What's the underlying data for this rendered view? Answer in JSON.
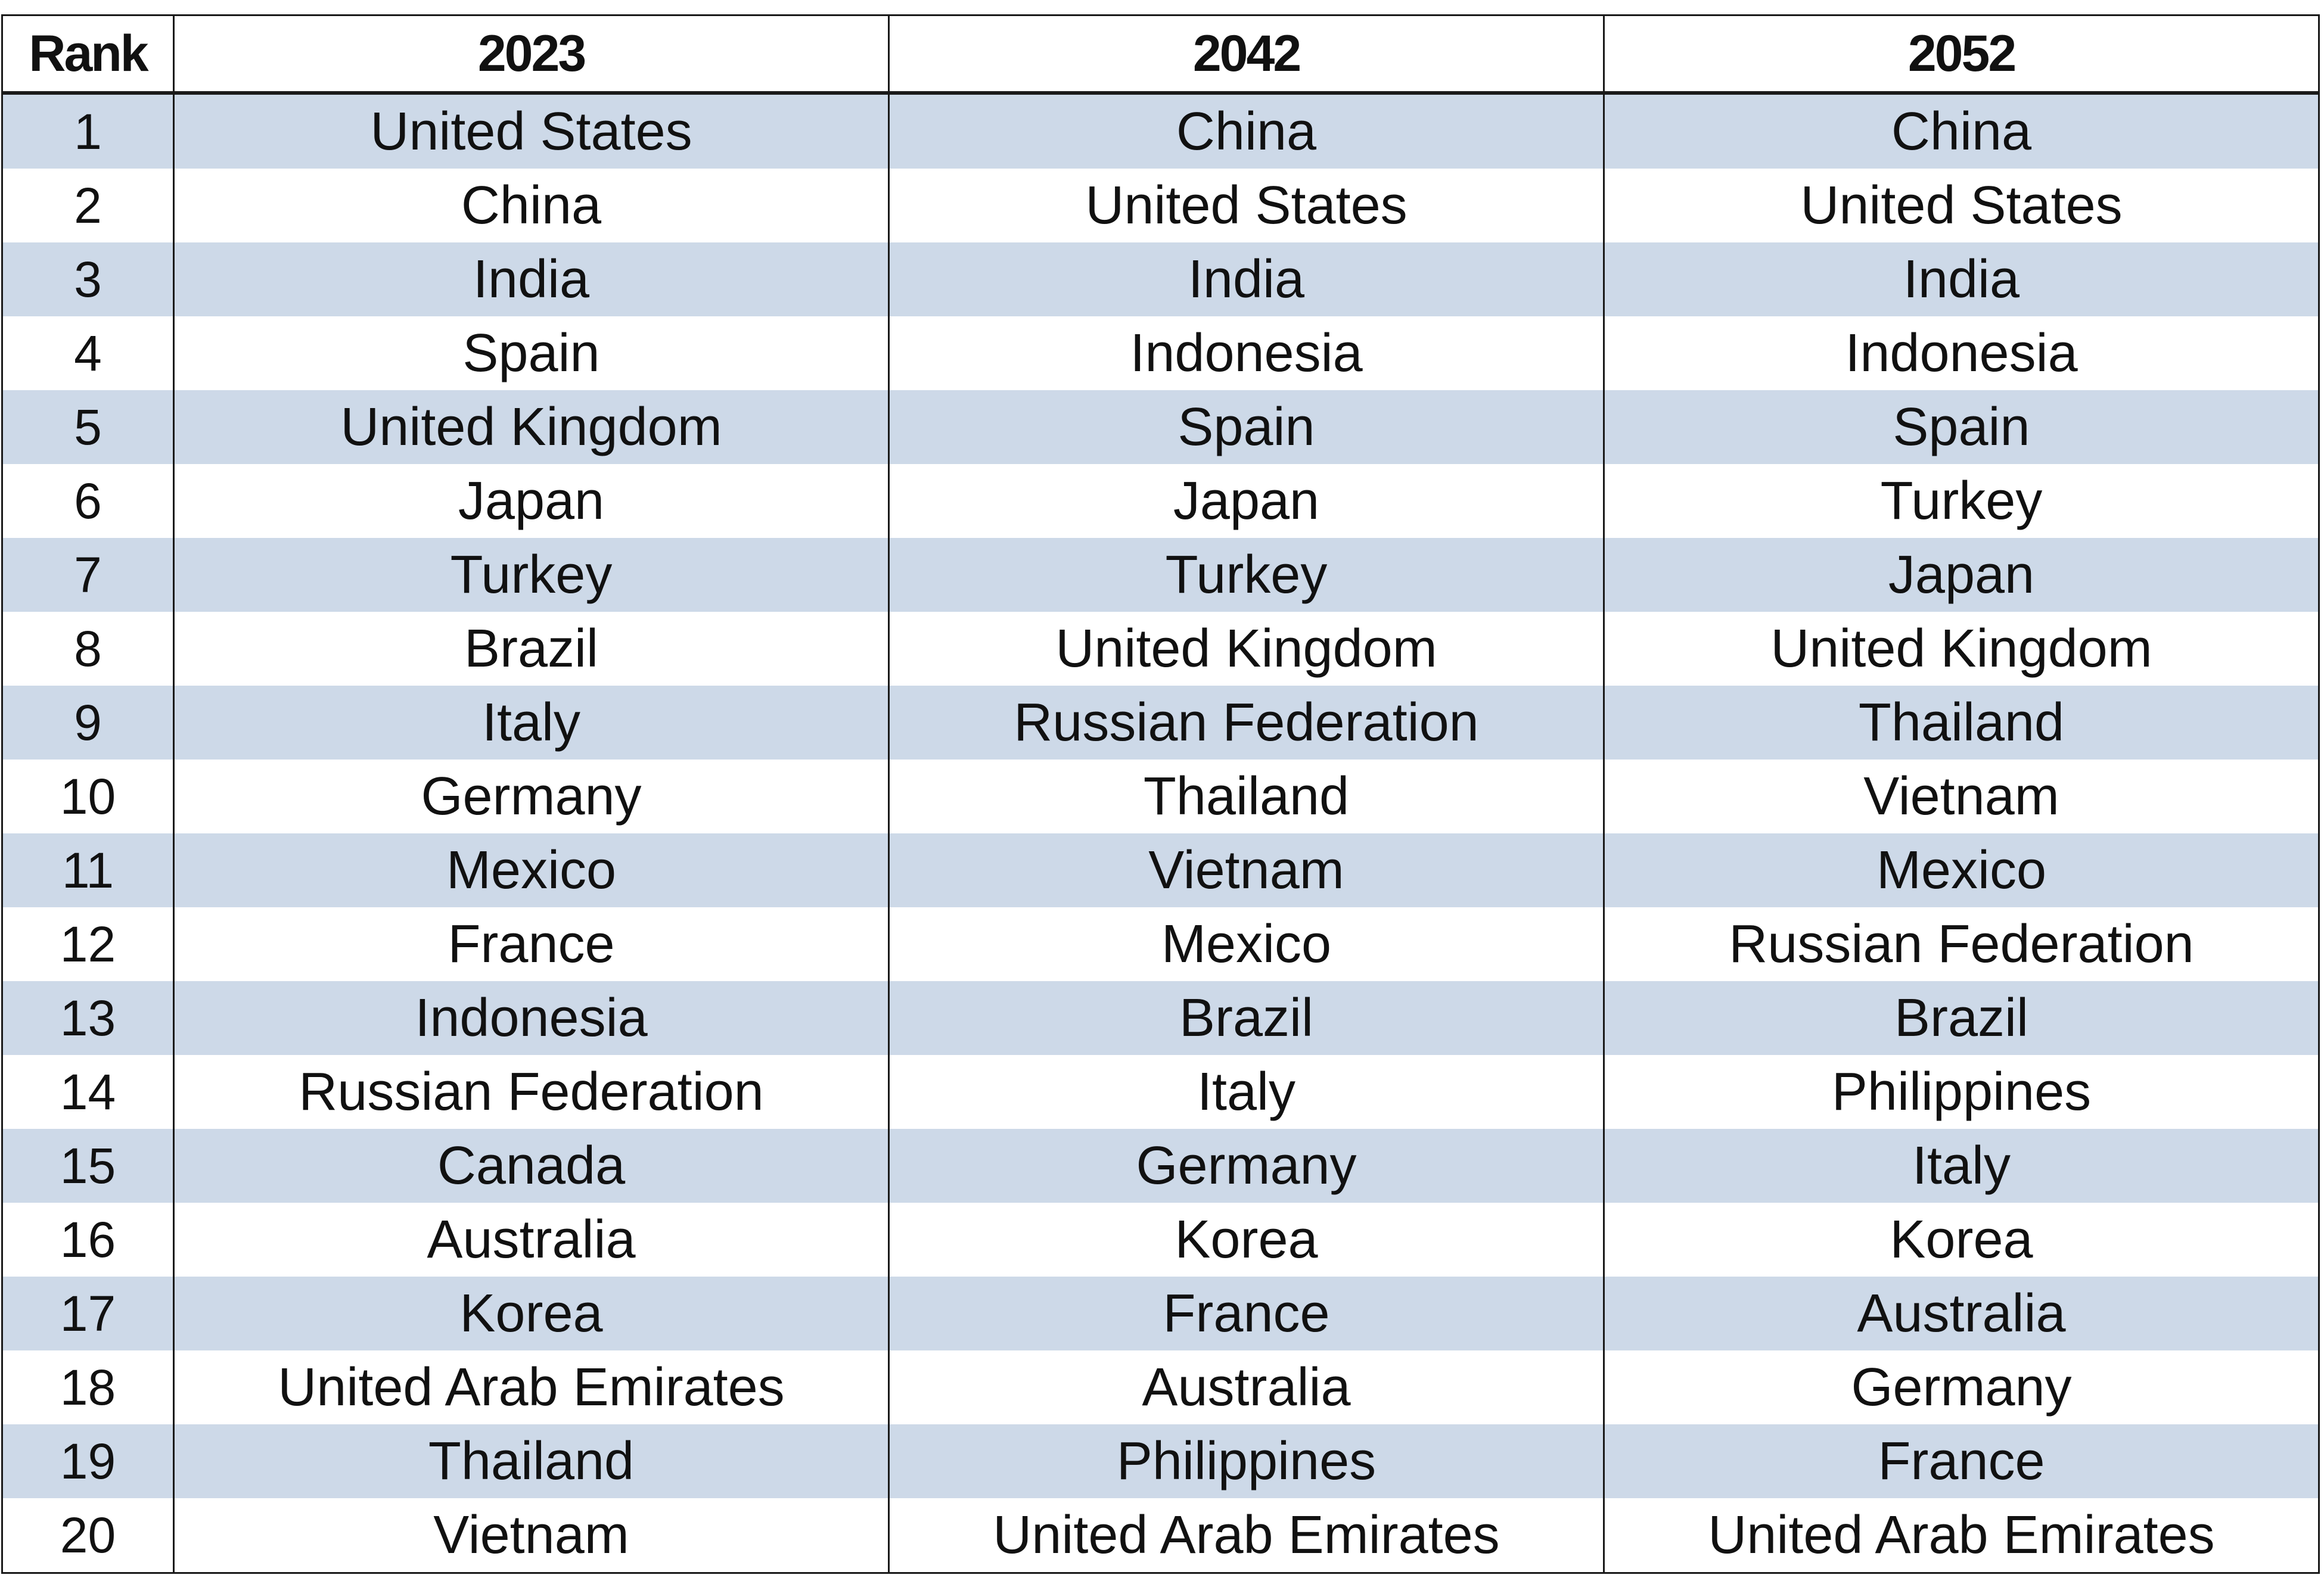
{
  "table": {
    "headers": [
      "Rank",
      "2023",
      "2042",
      "2052"
    ],
    "rows": [
      [
        "1",
        "United States",
        "China",
        "China"
      ],
      [
        "2",
        "China",
        "United States",
        "United States"
      ],
      [
        "3",
        "India",
        "India",
        "India"
      ],
      [
        "4",
        "Spain",
        "Indonesia",
        "Indonesia"
      ],
      [
        "5",
        "United Kingdom",
        "Spain",
        "Spain"
      ],
      [
        "6",
        "Japan",
        "Japan",
        "Turkey"
      ],
      [
        "7",
        "Turkey",
        "Turkey",
        "Japan"
      ],
      [
        "8",
        "Brazil",
        "United Kingdom",
        "United Kingdom"
      ],
      [
        "9",
        "Italy",
        "Russian Federation",
        "Thailand"
      ],
      [
        "10",
        "Germany",
        "Thailand",
        "Vietnam"
      ],
      [
        "11",
        "Mexico",
        "Vietnam",
        "Mexico"
      ],
      [
        "12",
        "France",
        "Mexico",
        "Russian Federation"
      ],
      [
        "13",
        "Indonesia",
        "Brazil",
        "Brazil"
      ],
      [
        "14",
        "Russian Federation",
        "Italy",
        "Philippines"
      ],
      [
        "15",
        "Canada",
        "Germany",
        "Italy"
      ],
      [
        "16",
        "Australia",
        "Korea",
        "Korea"
      ],
      [
        "17",
        "Korea",
        "France",
        "Australia"
      ],
      [
        "18",
        "United Arab Emirates",
        "Australia",
        "Germany"
      ],
      [
        "19",
        "Thailand",
        "Philippines",
        "France"
      ],
      [
        "20",
        "Vietnam",
        "United Arab Emirates",
        "United Arab Emirates"
      ]
    ]
  },
  "colors": {
    "shaded_row": "#cdd9e8",
    "plain_row": "#ffffff",
    "border": "#1a1a1a",
    "text": "#111111"
  }
}
